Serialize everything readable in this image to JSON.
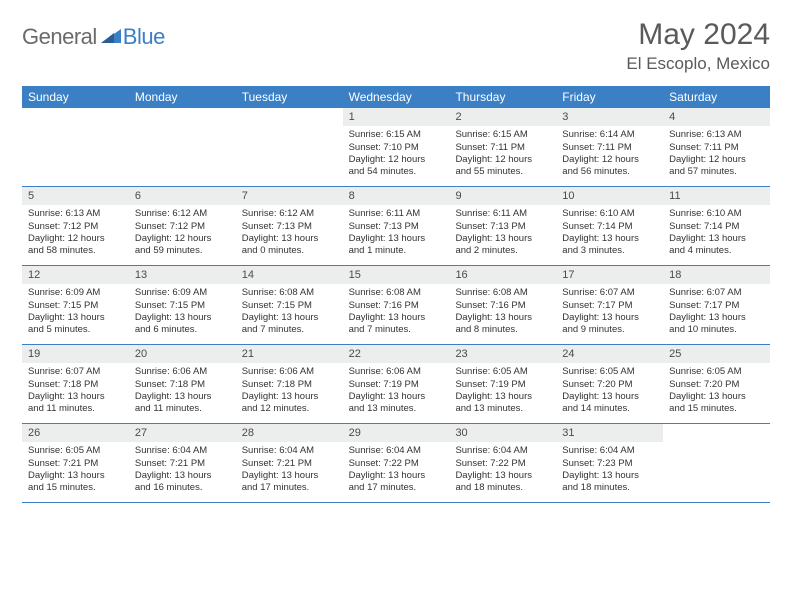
{
  "brand": {
    "word1": "General",
    "word2": "Blue"
  },
  "title": "May 2024",
  "location": "El Escoplo, Mexico",
  "colors": {
    "header_bg": "#3b7fc4",
    "header_text": "#ffffff",
    "daynum_bg": "#eceeee",
    "text": "#333333",
    "title_color": "#5a5a5a",
    "logo_gray": "#6b6b6b",
    "logo_blue": "#3b7fc4",
    "rule": "#3b7fc4"
  },
  "day_headers": [
    "Sunday",
    "Monday",
    "Tuesday",
    "Wednesday",
    "Thursday",
    "Friday",
    "Saturday"
  ],
  "weeks": [
    [
      null,
      null,
      null,
      {
        "n": "1",
        "sr": "6:15 AM",
        "ss": "7:10 PM",
        "dl": "Daylight: 12 hours and 54 minutes."
      },
      {
        "n": "2",
        "sr": "6:15 AM",
        "ss": "7:11 PM",
        "dl": "Daylight: 12 hours and 55 minutes."
      },
      {
        "n": "3",
        "sr": "6:14 AM",
        "ss": "7:11 PM",
        "dl": "Daylight: 12 hours and 56 minutes."
      },
      {
        "n": "4",
        "sr": "6:13 AM",
        "ss": "7:11 PM",
        "dl": "Daylight: 12 hours and 57 minutes."
      }
    ],
    [
      {
        "n": "5",
        "sr": "6:13 AM",
        "ss": "7:12 PM",
        "dl": "Daylight: 12 hours and 58 minutes."
      },
      {
        "n": "6",
        "sr": "6:12 AM",
        "ss": "7:12 PM",
        "dl": "Daylight: 12 hours and 59 minutes."
      },
      {
        "n": "7",
        "sr": "6:12 AM",
        "ss": "7:13 PM",
        "dl": "Daylight: 13 hours and 0 minutes."
      },
      {
        "n": "8",
        "sr": "6:11 AM",
        "ss": "7:13 PM",
        "dl": "Daylight: 13 hours and 1 minute."
      },
      {
        "n": "9",
        "sr": "6:11 AM",
        "ss": "7:13 PM",
        "dl": "Daylight: 13 hours and 2 minutes."
      },
      {
        "n": "10",
        "sr": "6:10 AM",
        "ss": "7:14 PM",
        "dl": "Daylight: 13 hours and 3 minutes."
      },
      {
        "n": "11",
        "sr": "6:10 AM",
        "ss": "7:14 PM",
        "dl": "Daylight: 13 hours and 4 minutes."
      }
    ],
    [
      {
        "n": "12",
        "sr": "6:09 AM",
        "ss": "7:15 PM",
        "dl": "Daylight: 13 hours and 5 minutes."
      },
      {
        "n": "13",
        "sr": "6:09 AM",
        "ss": "7:15 PM",
        "dl": "Daylight: 13 hours and 6 minutes."
      },
      {
        "n": "14",
        "sr": "6:08 AM",
        "ss": "7:15 PM",
        "dl": "Daylight: 13 hours and 7 minutes."
      },
      {
        "n": "15",
        "sr": "6:08 AM",
        "ss": "7:16 PM",
        "dl": "Daylight: 13 hours and 7 minutes."
      },
      {
        "n": "16",
        "sr": "6:08 AM",
        "ss": "7:16 PM",
        "dl": "Daylight: 13 hours and 8 minutes."
      },
      {
        "n": "17",
        "sr": "6:07 AM",
        "ss": "7:17 PM",
        "dl": "Daylight: 13 hours and 9 minutes."
      },
      {
        "n": "18",
        "sr": "6:07 AM",
        "ss": "7:17 PM",
        "dl": "Daylight: 13 hours and 10 minutes."
      }
    ],
    [
      {
        "n": "19",
        "sr": "6:07 AM",
        "ss": "7:18 PM",
        "dl": "Daylight: 13 hours and 11 minutes."
      },
      {
        "n": "20",
        "sr": "6:06 AM",
        "ss": "7:18 PM",
        "dl": "Daylight: 13 hours and 11 minutes."
      },
      {
        "n": "21",
        "sr": "6:06 AM",
        "ss": "7:18 PM",
        "dl": "Daylight: 13 hours and 12 minutes."
      },
      {
        "n": "22",
        "sr": "6:06 AM",
        "ss": "7:19 PM",
        "dl": "Daylight: 13 hours and 13 minutes."
      },
      {
        "n": "23",
        "sr": "6:05 AM",
        "ss": "7:19 PM",
        "dl": "Daylight: 13 hours and 13 minutes."
      },
      {
        "n": "24",
        "sr": "6:05 AM",
        "ss": "7:20 PM",
        "dl": "Daylight: 13 hours and 14 minutes."
      },
      {
        "n": "25",
        "sr": "6:05 AM",
        "ss": "7:20 PM",
        "dl": "Daylight: 13 hours and 15 minutes."
      }
    ],
    [
      {
        "n": "26",
        "sr": "6:05 AM",
        "ss": "7:21 PM",
        "dl": "Daylight: 13 hours and 15 minutes."
      },
      {
        "n": "27",
        "sr": "6:04 AM",
        "ss": "7:21 PM",
        "dl": "Daylight: 13 hours and 16 minutes."
      },
      {
        "n": "28",
        "sr": "6:04 AM",
        "ss": "7:21 PM",
        "dl": "Daylight: 13 hours and 17 minutes."
      },
      {
        "n": "29",
        "sr": "6:04 AM",
        "ss": "7:22 PM",
        "dl": "Daylight: 13 hours and 17 minutes."
      },
      {
        "n": "30",
        "sr": "6:04 AM",
        "ss": "7:22 PM",
        "dl": "Daylight: 13 hours and 18 minutes."
      },
      {
        "n": "31",
        "sr": "6:04 AM",
        "ss": "7:23 PM",
        "dl": "Daylight: 13 hours and 18 minutes."
      },
      null
    ]
  ],
  "labels": {
    "sunrise": "Sunrise:",
    "sunset": "Sunset:"
  }
}
